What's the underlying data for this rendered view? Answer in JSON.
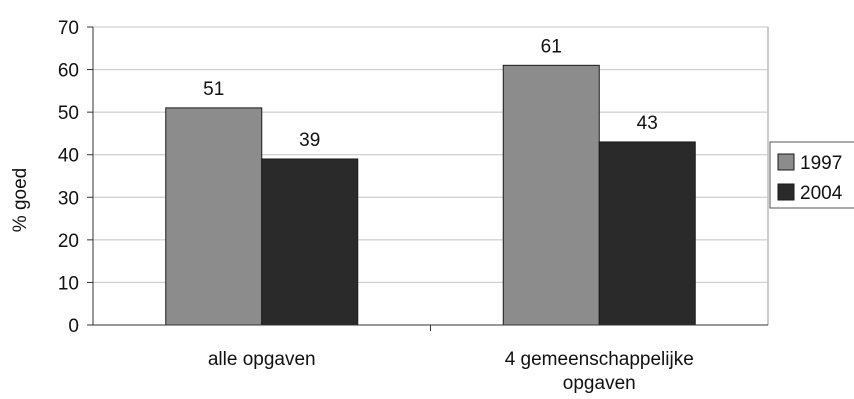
{
  "chart_data": {
    "type": "bar",
    "ylabel": "% goed",
    "ylim": [
      0,
      70
    ],
    "yticks": [
      0,
      10,
      20,
      30,
      40,
      50,
      60,
      70
    ],
    "grid": true,
    "legend_position": "right",
    "categories": [
      [
        "alle opgaven"
      ],
      [
        "4 gemeenschappelijke",
        "opgaven"
      ]
    ],
    "series": [
      {
        "name": "1997",
        "values": [
          51,
          61
        ],
        "color": "#8c8c8c"
      },
      {
        "name": "2004",
        "values": [
          39,
          43
        ],
        "color": "#2a2a2a"
      }
    ],
    "data_labels": [
      [
        "51",
        "61"
      ],
      [
        "39",
        "43"
      ]
    ]
  }
}
